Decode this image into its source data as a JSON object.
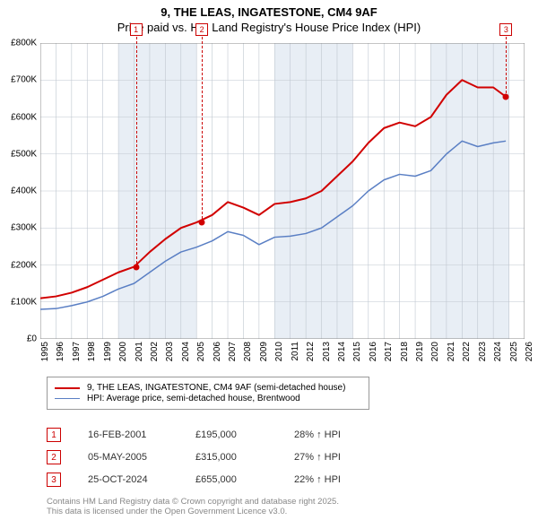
{
  "title": {
    "line1": "9, THE LEAS, INGATESTONE, CM4 9AF",
    "line2": "Price paid vs. HM Land Registry's House Price Index (HPI)"
  },
  "chart": {
    "type": "line",
    "background_color": "#ffffff",
    "grid_color": "#bfc7d0",
    "band_color": "#e8eef5",
    "x_axis": {
      "years": [
        1995,
        1996,
        1997,
        1998,
        1999,
        2000,
        2001,
        2002,
        2003,
        2004,
        2005,
        2006,
        2007,
        2008,
        2009,
        2010,
        2011,
        2012,
        2013,
        2014,
        2015,
        2016,
        2017,
        2018,
        2019,
        2020,
        2021,
        2022,
        2023,
        2024,
        2025,
        2026
      ],
      "label_fontsize": 10,
      "label_rotation": -90
    },
    "y_axis": {
      "min": 0,
      "max": 800000,
      "tick_step": 100000,
      "tick_labels": [
        "£0",
        "£100K",
        "£200K",
        "£300K",
        "£400K",
        "£500K",
        "£600K",
        "£700K",
        "£800K"
      ],
      "label_fontsize": 10
    },
    "bands_alt_start": 2000,
    "bands_alt_width": 5,
    "series": [
      {
        "name": "price_paid",
        "color": "#d10000",
        "line_width": 2,
        "points": [
          [
            1995,
            110000
          ],
          [
            1996,
            115000
          ],
          [
            1997,
            125000
          ],
          [
            1998,
            140000
          ],
          [
            1999,
            160000
          ],
          [
            2000,
            180000
          ],
          [
            2001,
            195000
          ],
          [
            2002,
            235000
          ],
          [
            2003,
            270000
          ],
          [
            2004,
            300000
          ],
          [
            2005,
            315000
          ],
          [
            2006,
            335000
          ],
          [
            2007,
            370000
          ],
          [
            2008,
            355000
          ],
          [
            2009,
            335000
          ],
          [
            2010,
            365000
          ],
          [
            2011,
            370000
          ],
          [
            2012,
            380000
          ],
          [
            2013,
            400000
          ],
          [
            2014,
            440000
          ],
          [
            2015,
            480000
          ],
          [
            2016,
            530000
          ],
          [
            2017,
            570000
          ],
          [
            2018,
            585000
          ],
          [
            2019,
            575000
          ],
          [
            2020,
            600000
          ],
          [
            2021,
            660000
          ],
          [
            2022,
            700000
          ],
          [
            2023,
            680000
          ],
          [
            2024,
            680000
          ],
          [
            2024.8,
            655000
          ]
        ]
      },
      {
        "name": "hpi",
        "color": "#5a7fc4",
        "line_width": 1.5,
        "points": [
          [
            1995,
            80000
          ],
          [
            1996,
            82000
          ],
          [
            1997,
            90000
          ],
          [
            1998,
            100000
          ],
          [
            1999,
            115000
          ],
          [
            2000,
            135000
          ],
          [
            2001,
            150000
          ],
          [
            2002,
            180000
          ],
          [
            2003,
            210000
          ],
          [
            2004,
            235000
          ],
          [
            2005,
            248000
          ],
          [
            2006,
            265000
          ],
          [
            2007,
            290000
          ],
          [
            2008,
            280000
          ],
          [
            2009,
            255000
          ],
          [
            2010,
            275000
          ],
          [
            2011,
            278000
          ],
          [
            2012,
            285000
          ],
          [
            2013,
            300000
          ],
          [
            2014,
            330000
          ],
          [
            2015,
            360000
          ],
          [
            2016,
            400000
          ],
          [
            2017,
            430000
          ],
          [
            2018,
            445000
          ],
          [
            2019,
            440000
          ],
          [
            2020,
            455000
          ],
          [
            2021,
            500000
          ],
          [
            2022,
            535000
          ],
          [
            2023,
            520000
          ],
          [
            2024,
            530000
          ],
          [
            2024.8,
            535000
          ]
        ]
      }
    ],
    "transaction_markers": [
      {
        "num": "1",
        "year": 2001.12,
        "price": 195000
      },
      {
        "num": "2",
        "year": 2005.34,
        "price": 315000
      },
      {
        "num": "3",
        "year": 2024.82,
        "price": 655000
      }
    ],
    "marker_border_color": "#cc0000",
    "dot_color": "#d10000"
  },
  "legend": {
    "items": [
      {
        "color": "#d10000",
        "width": 2,
        "label": "9, THE LEAS, INGATESTONE, CM4 9AF (semi-detached house)"
      },
      {
        "color": "#5a7fc4",
        "width": 1.5,
        "label": "HPI: Average price, semi-detached house, Brentwood"
      }
    ]
  },
  "transactions": [
    {
      "num": "1",
      "date": "16-FEB-2001",
      "price": "£195,000",
      "pct": "28% ↑ HPI"
    },
    {
      "num": "2",
      "date": "05-MAY-2005",
      "price": "£315,000",
      "pct": "27% ↑ HPI"
    },
    {
      "num": "3",
      "date": "25-OCT-2024",
      "price": "£655,000",
      "pct": "22% ↑ HPI"
    }
  ],
  "footer": {
    "line1": "Contains HM Land Registry data © Crown copyright and database right 2025.",
    "line2": "This data is licensed under the Open Government Licence v3.0."
  }
}
